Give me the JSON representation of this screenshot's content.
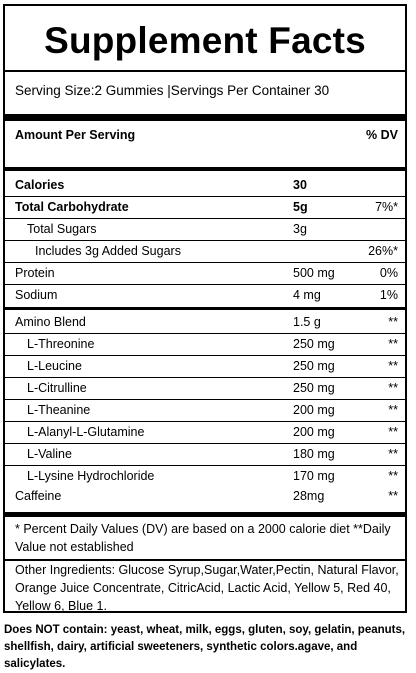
{
  "title": "Supplement Facts",
  "serving_line": "Serving Size:2 Gummies |Servings Per Container 30",
  "header": {
    "amount_label": "Amount Per Serving",
    "dv_label": "% DV"
  },
  "calories": {
    "label": "Calories",
    "amount": "30"
  },
  "nutrients": [
    {
      "label": "Total Carbohydrate",
      "amount": "5g",
      "dv": "7%*"
    },
    {
      "label": "Total Sugars",
      "amount": "3g",
      "dv": ""
    },
    {
      "label": "Includes 3g Added Sugars",
      "amount": "",
      "dv": "26%*"
    },
    {
      "label": "Protein",
      "amount": "500 mg",
      "dv": "0%"
    },
    {
      "label": "Sodium",
      "amount": "4 mg",
      "dv": "1%"
    }
  ],
  "amino_blend": {
    "label": "Amino Blend",
    "amount": "1.5 g",
    "dv": "**"
  },
  "amino_items": [
    {
      "label": "L-Threonine",
      "amount": "250 mg",
      "dv": "**"
    },
    {
      "label": "L-Leucine",
      "amount": "250 mg",
      "dv": "**"
    },
    {
      "label": "L-Citrulline",
      "amount": "250 mg",
      "dv": "**"
    },
    {
      "label": "L-Theanine",
      "amount": "200 mg",
      "dv": "**"
    },
    {
      "label": "L-Alanyl-L-Glutamine",
      "amount": "200 mg",
      "dv": "**"
    },
    {
      "label": "L-Valine",
      "amount": "180 mg",
      "dv": "**"
    },
    {
      "label": "L-Lysine Hydrochloride",
      "amount": "170 mg",
      "dv": "**"
    }
  ],
  "caffeine": {
    "label": "Caffeine",
    "amount": "28mg",
    "dv": "**"
  },
  "footnote": "* Percent Daily Values (DV) are based on a 2000 calorie diet **Daily Value not established",
  "other_ingredients": "Other Ingredients: Glucose Syrup,Sugar,Water,Pectin, Natural Flavor, Orange Juice Concentrate, CitricAcid, Lactic Acid, Yellow 5, Red 40, Yellow 6, Blue 1.",
  "does_not_contain": "Does NOT contain: yeast, wheat, milk, eggs, gluten, soy, gelatin, peanuts, shellfish, dairy, artificial sweeteners, synthetic colors.agave, and salicylates."
}
